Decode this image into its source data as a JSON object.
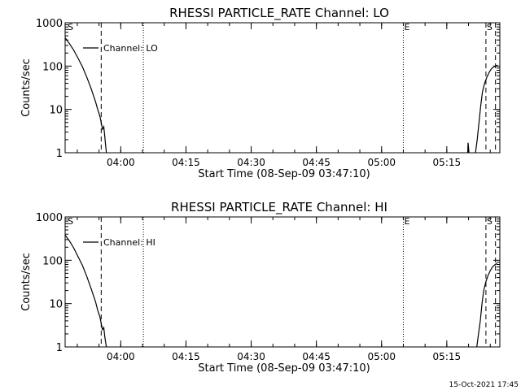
{
  "footer": {
    "timestamp": "15-Oct-2021 17:45"
  },
  "chart_data": [
    {
      "type": "line",
      "scale": "log",
      "title": "RHESSI PARTICLE_RATE Channel: LO",
      "xlabel": "Start Time (08-Sep-09 03:47:10)",
      "ylabel": "Counts/sec",
      "x_unit": "minutes",
      "xlim": [
        0,
        100
      ],
      "ylim": [
        1,
        1000
      ],
      "xticks": [
        {
          "v": 12.8,
          "label": "04:00"
        },
        {
          "v": 27.8,
          "label": "04:15"
        },
        {
          "v": 42.8,
          "label": "04:30"
        },
        {
          "v": 57.8,
          "label": "04:45"
        },
        {
          "v": 72.8,
          "label": "05:00"
        },
        {
          "v": 87.8,
          "label": "05:15"
        }
      ],
      "yticks": [
        {
          "v": 1,
          "label": "1"
        },
        {
          "v": 10,
          "label": "10"
        },
        {
          "v": 100,
          "label": "100"
        },
        {
          "v": 1000,
          "label": "1000"
        }
      ],
      "legend": {
        "label": "Channel: LO",
        "placement": "top-left"
      },
      "vlines": [
        {
          "x": 8.3,
          "style": "dashed"
        },
        {
          "x": 18.0,
          "style": "dotted"
        },
        {
          "x": 77.8,
          "style": "dotted",
          "label": "E"
        },
        {
          "x": 96.8,
          "style": "dashed",
          "label": "S"
        },
        {
          "x": 99.0,
          "style": "dashed"
        }
      ],
      "corner_labels": [
        {
          "x": 0.4,
          "text": "S"
        }
      ],
      "series": [
        {
          "x": [
            0,
            1,
            2,
            3,
            4,
            5,
            6,
            7,
            7.5,
            8,
            8.3,
            8.6,
            8.9,
            9.1,
            9.3,
            9.5
          ],
          "y": [
            450,
            330,
            230,
            150,
            95,
            55,
            30,
            15,
            10,
            7,
            5,
            3.5,
            4,
            2.5,
            1.5,
            1
          ]
        },
        {
          "x": [
            92.6,
            92.7,
            92.8,
            92.9
          ],
          "y": [
            1,
            1.7,
            1.3,
            1
          ]
        },
        {
          "x": [
            94.4,
            94.8,
            95.2,
            95.6,
            96.0,
            96.5,
            97.0,
            97.5,
            98.0,
            98.5,
            99.0,
            99.5
          ],
          "y": [
            1,
            2,
            5,
            12,
            25,
            40,
            55,
            70,
            85,
            95,
            100,
            105
          ]
        }
      ]
    },
    {
      "type": "line",
      "scale": "log",
      "title": "RHESSI PARTICLE_RATE Channel: HI",
      "xlabel": "Start Time (08-Sep-09 03:47:10)",
      "ylabel": "Counts/sec",
      "x_unit": "minutes",
      "xlim": [
        0,
        100
      ],
      "ylim": [
        1,
        1000
      ],
      "xticks": [
        {
          "v": 12.8,
          "label": "04:00"
        },
        {
          "v": 27.8,
          "label": "04:15"
        },
        {
          "v": 42.8,
          "label": "04:30"
        },
        {
          "v": 57.8,
          "label": "04:45"
        },
        {
          "v": 72.8,
          "label": "05:00"
        },
        {
          "v": 87.8,
          "label": "05:15"
        }
      ],
      "yticks": [
        {
          "v": 1,
          "label": "1"
        },
        {
          "v": 10,
          "label": "10"
        },
        {
          "v": 100,
          "label": "100"
        },
        {
          "v": 1000,
          "label": "1000"
        }
      ],
      "legend": {
        "label": "Channel: HI",
        "placement": "top-left"
      },
      "vlines": [
        {
          "x": 8.3,
          "style": "dashed"
        },
        {
          "x": 18.0,
          "style": "dotted"
        },
        {
          "x": 77.8,
          "style": "dotted",
          "label": "E"
        },
        {
          "x": 96.8,
          "style": "dashed",
          "label": "S"
        },
        {
          "x": 99.0,
          "style": "dashed"
        }
      ],
      "corner_labels": [
        {
          "x": 0.4,
          "text": "S"
        }
      ],
      "series": [
        {
          "x": [
            0,
            1,
            2,
            3,
            4,
            5,
            6,
            7,
            7.5,
            8,
            8.3,
            8.6,
            8.9,
            9.1,
            9.3,
            9.5
          ],
          "y": [
            380,
            280,
            190,
            120,
            75,
            42,
            22,
            11,
            7,
            5,
            3.5,
            2.5,
            2.8,
            1.8,
            1.3,
            1
          ]
        },
        {
          "x": [
            94.7,
            95.1,
            95.5,
            95.9,
            96.3,
            96.8,
            97.3,
            97.8,
            98.3,
            98.8,
            99.3
          ],
          "y": [
            1,
            2,
            4,
            10,
            20,
            32,
            45,
            58,
            70,
            78,
            85
          ]
        }
      ]
    }
  ]
}
